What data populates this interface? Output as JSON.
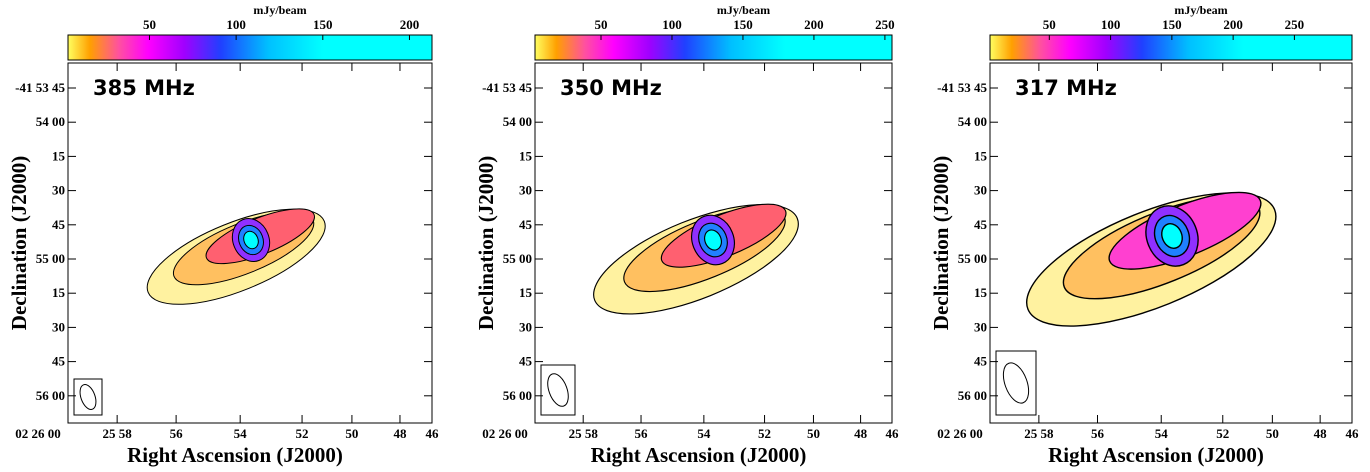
{
  "panels": [
    {
      "frequency": "385 MHz",
      "colorbar": {
        "title": "mJy/beam",
        "range": [
          3,
          213
        ],
        "ticks": [
          50,
          100,
          150,
          200
        ]
      }
    },
    {
      "frequency": "350 MHz",
      "colorbar": {
        "title": "mJy/beam",
        "range": [
          3.5,
          255
        ],
        "ticks": [
          50,
          100,
          150,
          200,
          250
        ]
      }
    },
    {
      "frequency": "317 MHz",
      "colorbar": {
        "title": "mJy/beam",
        "range": [
          1.6,
          297
        ],
        "ticks": [
          50,
          100,
          150,
          200,
          250
        ]
      }
    }
  ],
  "y_axis": {
    "title": "Declination (J2000)",
    "ticks": [
      "-41 53 45",
      "54 00",
      "15",
      "30",
      "45",
      "55 00",
      "15",
      "30",
      "45",
      "56 00"
    ]
  },
  "x_axis": {
    "title": "Right Ascension (J2000)",
    "ticks": [
      "02 26 00",
      "25 58",
      "56",
      "54",
      "52",
      "50",
      "48",
      "46"
    ]
  }
}
